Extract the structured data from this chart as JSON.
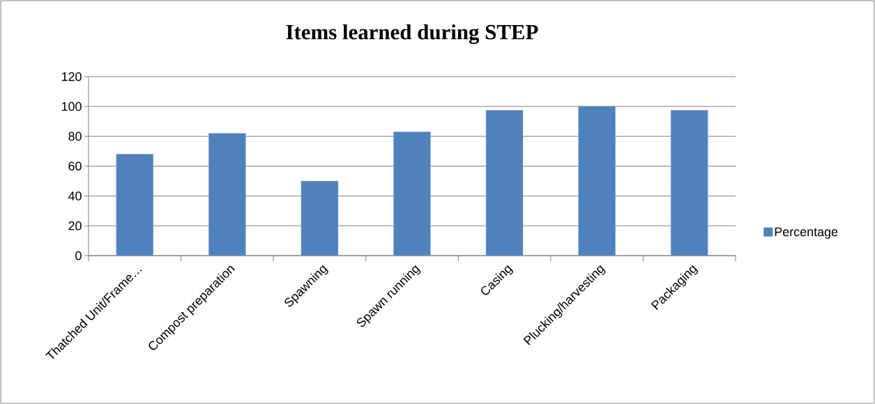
{
  "chart_data": {
    "type": "bar",
    "title": "Items learned during STEP",
    "categories": [
      "Thatched Unit/Frame…",
      "Compost preparation",
      "Spawning",
      "Spawn running",
      "Casing",
      "Plucking/harvesting",
      "Packaging"
    ],
    "series": [
      {
        "name": "Percentage",
        "color": "#4f81bd",
        "values": [
          68,
          82,
          50,
          83,
          97.5,
          100,
          97.5
        ]
      }
    ],
    "ylim": [
      0,
      120
    ],
    "yticks": [
      0,
      20,
      40,
      60,
      80,
      100,
      120
    ],
    "grid": "y",
    "legend": "right"
  }
}
